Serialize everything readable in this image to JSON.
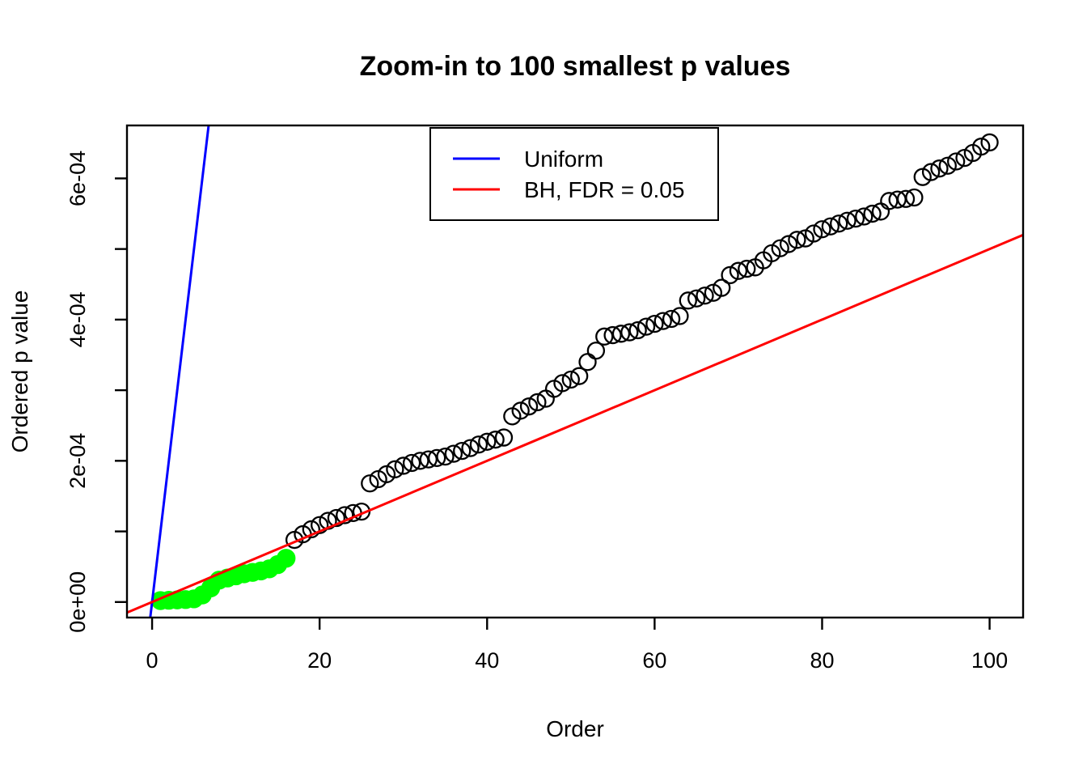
{
  "chart_data": {
    "type": "scatter",
    "title": "Zoom-in to 100 smallest p values",
    "xlabel": "Order",
    "ylabel": "Ordered p value",
    "x_description": "order index 1..100 (x of point i is i)",
    "value_unit": "1e-06 (values below are p-values multiplied by 1e6)",
    "ordered_p_values_e06": [
      2,
      2.5,
      3,
      3.5,
      4.5,
      10,
      20,
      31,
      34,
      37,
      40,
      42,
      44,
      47,
      53,
      62,
      88,
      96,
      103,
      109,
      115,
      119,
      123,
      126,
      128,
      168,
      174,
      181,
      188,
      193,
      197,
      200,
      202,
      204,
      206,
      210,
      214,
      218,
      223,
      227,
      230,
      233,
      263,
      271,
      277,
      283,
      288,
      302,
      310,
      315,
      320,
      340,
      356,
      376,
      378,
      380,
      382,
      385,
      390,
      394,
      398,
      401,
      405,
      427,
      430,
      434,
      438,
      445,
      463,
      469,
      472,
      474,
      484,
      494,
      501,
      507,
      513,
      515,
      522,
      528,
      532,
      536,
      540,
      543,
      546,
      550,
      553,
      568,
      570,
      571,
      573,
      602,
      609,
      614,
      618,
      624,
      629,
      636,
      645,
      651
    ],
    "n_significant_green": 16,
    "xlim": [
      -3,
      104
    ],
    "ylim_e06": [
      -22,
      675
    ],
    "grid": false,
    "x_ticks": [
      {
        "v": 0,
        "label": "0"
      },
      {
        "v": 20,
        "label": "20"
      },
      {
        "v": 40,
        "label": "40"
      },
      {
        "v": 60,
        "label": "60"
      },
      {
        "v": 80,
        "label": "80"
      },
      {
        "v": 100,
        "label": "100"
      }
    ],
    "y_ticks": [
      {
        "v": 0,
        "label": "0e+00"
      },
      {
        "v": 100,
        "label": ""
      },
      {
        "v": 200,
        "label": "2e-04"
      },
      {
        "v": 300,
        "label": ""
      },
      {
        "v": 400,
        "label": "4e-04"
      },
      {
        "v": 500,
        "label": ""
      },
      {
        "v": 600,
        "label": "6e-04"
      }
    ],
    "lines": [
      {
        "name": "Uniform",
        "color": "#0000FF",
        "slope_e06_per_order": 100,
        "intercept_e06": 0
      },
      {
        "name": "BH, FDR = 0.05",
        "color": "#FF0000",
        "slope_e06_per_order": 5,
        "intercept_e06": 0
      }
    ],
    "legend": {
      "position": "top-center",
      "entries": [
        {
          "label": "Uniform",
          "color": "#0000FF"
        },
        {
          "label": "BH, FDR = 0.05",
          "color": "#FF0000"
        }
      ]
    },
    "point_style": {
      "open_stroke_color": "#000000",
      "significant_fill_color": "#00FF00"
    }
  }
}
